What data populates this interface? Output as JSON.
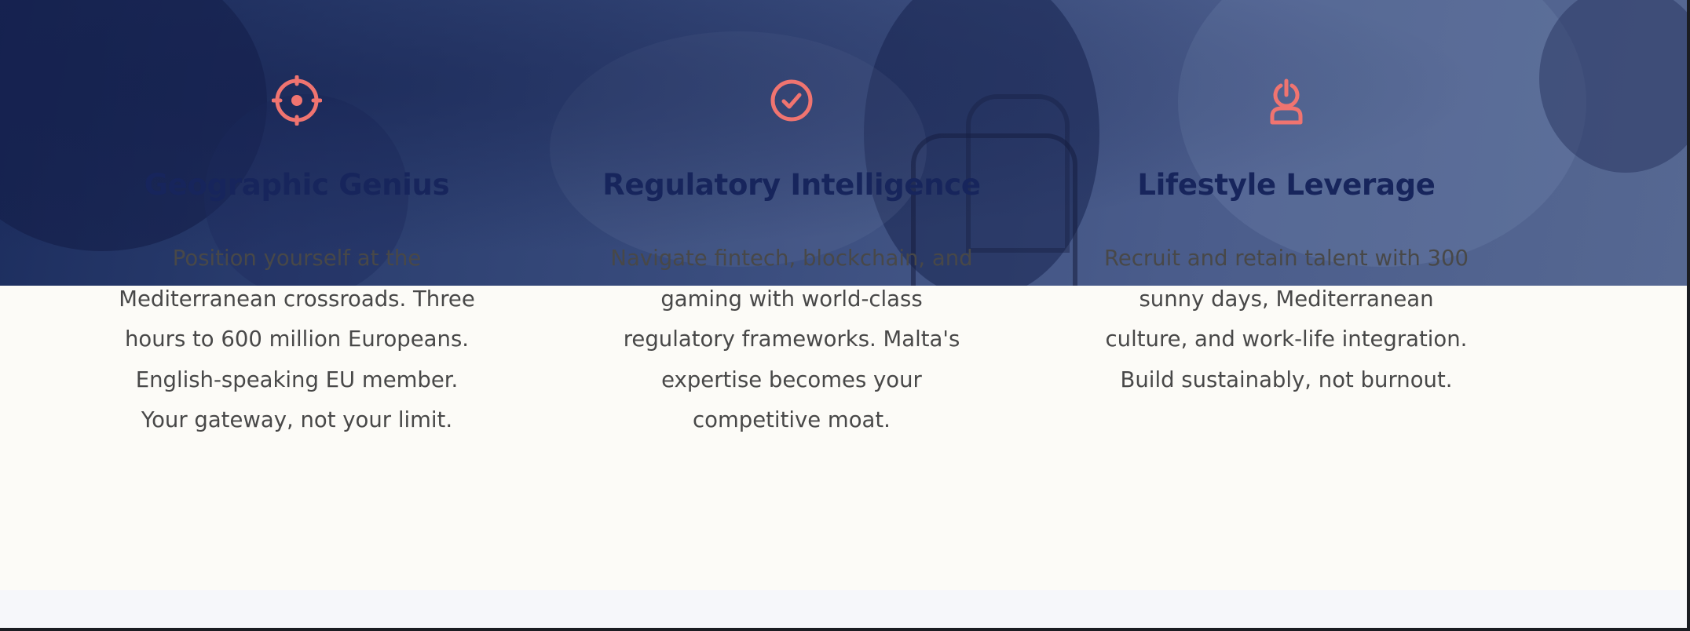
{
  "features": [
    {
      "icon": "target-icon",
      "title": "Geographic Genius",
      "lines": [
        "Position yourself at the",
        "Mediterranean crossroads. Three",
        "hours to 600 million Europeans.",
        "English-speaking EU member.",
        "Your gateway, not your limit."
      ]
    },
    {
      "icon": "check-circle-icon",
      "title": "Regulatory Intelligence",
      "lines": [
        "Navigate fintech, blockchain, and",
        "gaming with world-class",
        "regulatory frameworks. Malta's",
        "expertise becomes your",
        "competitive moat."
      ]
    },
    {
      "icon": "user-power-icon",
      "title": "Lifestyle Leverage",
      "lines": [
        "Recruit and retain talent with 300",
        "sunny days, Mediterranean",
        "culture, and work-life integration.",
        "Build sustainably, not burnout."
      ]
    }
  ],
  "colors": {
    "icon_accent": "#f07470",
    "title": "#17255c",
    "body_text": "#484848",
    "hero_overlay": "#2c3f70",
    "page_background": "#fcfbf7"
  }
}
